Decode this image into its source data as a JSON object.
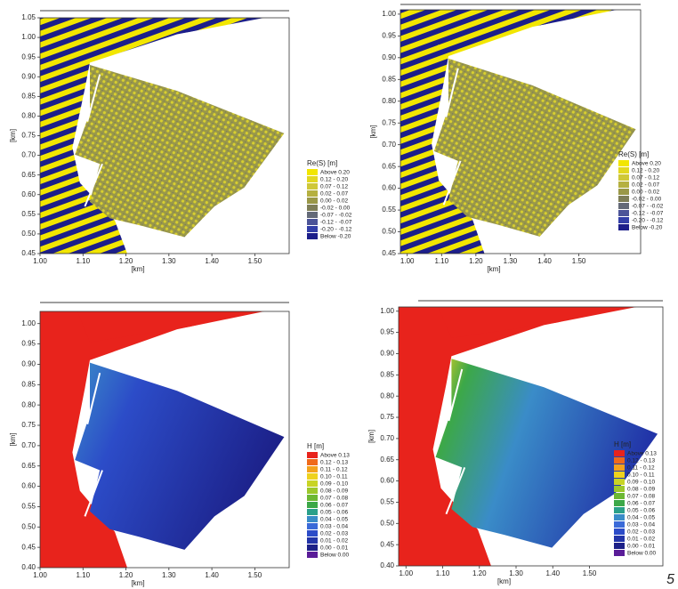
{
  "chart_data": [
    {
      "type": "contour",
      "xlabel": "[km]",
      "ylabel": "[km]",
      "xlim": [
        1.0,
        1.58
      ],
      "ylim": [
        0.45,
        1.05
      ],
      "xticks": [
        {
          "value": 1.0,
          "label": "1.00"
        },
        {
          "value": 1.1,
          "label": "1.10"
        },
        {
          "value": 1.2,
          "label": "1.20"
        },
        {
          "value": 1.3,
          "label": "1.30"
        },
        {
          "value": 1.4,
          "label": "1.40"
        },
        {
          "value": 1.5,
          "label": "1.50"
        }
      ],
      "yticks": [
        {
          "value": 0.45,
          "label": "0.45"
        },
        {
          "value": 0.5,
          "label": "0.50"
        },
        {
          "value": 0.55,
          "label": "0.55"
        },
        {
          "value": 0.6,
          "label": "0.60"
        },
        {
          "value": 0.65,
          "label": "0.65"
        },
        {
          "value": 0.7,
          "label": "0.70"
        },
        {
          "value": 0.75,
          "label": "0.75"
        },
        {
          "value": 0.8,
          "label": "0.80"
        },
        {
          "value": 0.85,
          "label": "0.85"
        },
        {
          "value": 0.9,
          "label": "0.90"
        },
        {
          "value": 0.95,
          "label": "0.95"
        },
        {
          "value": 1.0,
          "label": "1.00"
        },
        {
          "value": 1.05,
          "label": "1.05"
        }
      ],
      "legend": {
        "title": "Re(S) [m]",
        "items": [
          {
            "label": "Above 0.20",
            "color": "#f2e600"
          },
          {
            "label": "0.12 - 0.20",
            "color": "#e2d820"
          },
          {
            "label": "0.07 - 0.12",
            "color": "#cfc838"
          },
          {
            "label": "0.02 - 0.07",
            "color": "#b5b040"
          },
          {
            "label": "0.00 - 0.02",
            "color": "#9a9848"
          },
          {
            "label": "-0.02 - 0.00",
            "color": "#7e7e58"
          },
          {
            "label": "-0.07 - -0.02",
            "color": "#646a78"
          },
          {
            "label": "-0.12 - -0.07",
            "color": "#4c5498"
          },
          {
            "label": "-0.20 - -0.12",
            "color": "#333fa8"
          },
          {
            "label": "Below -0.20",
            "color": "#1c1e8a"
          }
        ]
      }
    },
    {
      "type": "contour",
      "xlabel": "[km]",
      "ylabel": "[km]",
      "xlim": [
        0.98,
        1.68
      ],
      "ylim": [
        0.45,
        1.01
      ],
      "xticks": [
        {
          "value": 1.0,
          "label": "1.00"
        },
        {
          "value": 1.1,
          "label": "1.10"
        },
        {
          "value": 1.2,
          "label": "1.20"
        },
        {
          "value": 1.3,
          "label": "1.30"
        },
        {
          "value": 1.4,
          "label": "1.40"
        },
        {
          "value": 1.5,
          "label": "1.50"
        }
      ],
      "yticks": [
        {
          "value": 0.45,
          "label": "0.45"
        },
        {
          "value": 0.5,
          "label": "0.50"
        },
        {
          "value": 0.55,
          "label": "0.55"
        },
        {
          "value": 0.6,
          "label": "0.60"
        },
        {
          "value": 0.65,
          "label": "0.65"
        },
        {
          "value": 0.7,
          "label": "0.70"
        },
        {
          "value": 0.75,
          "label": "0.75"
        },
        {
          "value": 0.8,
          "label": "0.80"
        },
        {
          "value": 0.85,
          "label": "0.85"
        },
        {
          "value": 0.9,
          "label": "0.90"
        },
        {
          "value": 0.95,
          "label": "0.95"
        },
        {
          "value": 1.0,
          "label": "1.00"
        }
      ],
      "legend": {
        "title": "Re(S) [m]",
        "items": [
          {
            "label": "Above 0.20",
            "color": "#f2e600"
          },
          {
            "label": "0.12 - 0.20",
            "color": "#e2d820"
          },
          {
            "label": "0.07 - 0.12",
            "color": "#cfc838"
          },
          {
            "label": "0.02 - 0.07",
            "color": "#b5b040"
          },
          {
            "label": "0.00 - 0.02",
            "color": "#9a9848"
          },
          {
            "label": "-0.02 - 0.00",
            "color": "#7e7e58"
          },
          {
            "label": "-0.07 - -0.02",
            "color": "#646a78"
          },
          {
            "label": "-0.12 - -0.07",
            "color": "#4c5498"
          },
          {
            "label": "-0.20 - -0.12",
            "color": "#333fa8"
          },
          {
            "label": "Below -0.20",
            "color": "#1c1e8a"
          }
        ]
      }
    },
    {
      "type": "contour",
      "xlabel": "[km]",
      "ylabel": "[km]",
      "xlim": [
        1.0,
        1.58
      ],
      "ylim": [
        0.4,
        1.03
      ],
      "xticks": [
        {
          "value": 1.0,
          "label": "1.00"
        },
        {
          "value": 1.1,
          "label": "1.10"
        },
        {
          "value": 1.2,
          "label": "1.20"
        },
        {
          "value": 1.3,
          "label": "1.30"
        },
        {
          "value": 1.4,
          "label": "1.40"
        },
        {
          "value": 1.5,
          "label": "1.50"
        }
      ],
      "yticks": [
        {
          "value": 0.4,
          "label": "0.40"
        },
        {
          "value": 0.45,
          "label": "0.45"
        },
        {
          "value": 0.5,
          "label": "0.50"
        },
        {
          "value": 0.55,
          "label": "0.55"
        },
        {
          "value": 0.6,
          "label": "0.60"
        },
        {
          "value": 0.65,
          "label": "0.65"
        },
        {
          "value": 0.7,
          "label": "0.70"
        },
        {
          "value": 0.75,
          "label": "0.75"
        },
        {
          "value": 0.8,
          "label": "0.80"
        },
        {
          "value": 0.85,
          "label": "0.85"
        },
        {
          "value": 0.9,
          "label": "0.90"
        },
        {
          "value": 0.95,
          "label": "0.95"
        },
        {
          "value": 1.0,
          "label": "1.00"
        }
      ],
      "legend": {
        "title": "H [m]",
        "items": [
          {
            "label": "Above 0.13",
            "color": "#e8231c"
          },
          {
            "label": "0.12 - 0.13",
            "color": "#f06a1a"
          },
          {
            "label": "0.11 - 0.12",
            "color": "#f4a21c"
          },
          {
            "label": "0.10 - 0.11",
            "color": "#eed21e"
          },
          {
            "label": "0.09 - 0.10",
            "color": "#c8d424"
          },
          {
            "label": "0.08 - 0.09",
            "color": "#9cc82c"
          },
          {
            "label": "0.07 - 0.08",
            "color": "#6cb834"
          },
          {
            "label": "0.06 - 0.07",
            "color": "#3ca848"
          },
          {
            "label": "0.05 - 0.06",
            "color": "#2aa08a"
          },
          {
            "label": "0.04 - 0.05",
            "color": "#3a8cc8"
          },
          {
            "label": "0.03 - 0.04",
            "color": "#3a6ad8"
          },
          {
            "label": "0.02 - 0.03",
            "color": "#2c4cc8"
          },
          {
            "label": "0.01 - 0.02",
            "color": "#2234a8"
          },
          {
            "label": "0.00 - 0.01",
            "color": "#1c2088"
          },
          {
            "label": "Below 0.00",
            "color": "#5a1c98"
          }
        ]
      }
    },
    {
      "type": "contour",
      "xlabel": "[km]",
      "ylabel": "[km]",
      "xlim": [
        0.98,
        1.7
      ],
      "ylim": [
        0.4,
        1.01
      ],
      "xticks": [
        {
          "value": 1.0,
          "label": "1.00"
        },
        {
          "value": 1.1,
          "label": "1.10"
        },
        {
          "value": 1.2,
          "label": "1.20"
        },
        {
          "value": 1.3,
          "label": "1.30"
        },
        {
          "value": 1.4,
          "label": "1.40"
        },
        {
          "value": 1.5,
          "label": "1.50"
        }
      ],
      "yticks": [
        {
          "value": 0.4,
          "label": "0.40"
        },
        {
          "value": 0.45,
          "label": "0.45"
        },
        {
          "value": 0.5,
          "label": "0.50"
        },
        {
          "value": 0.55,
          "label": "0.55"
        },
        {
          "value": 0.6,
          "label": "0.60"
        },
        {
          "value": 0.65,
          "label": "0.65"
        },
        {
          "value": 0.7,
          "label": "0.70"
        },
        {
          "value": 0.75,
          "label": "0.75"
        },
        {
          "value": 0.8,
          "label": "0.80"
        },
        {
          "value": 0.85,
          "label": "0.85"
        },
        {
          "value": 0.9,
          "label": "0.90"
        },
        {
          "value": 0.95,
          "label": "0.95"
        },
        {
          "value": 1.0,
          "label": "1.00"
        }
      ],
      "legend": {
        "title": "H [m]",
        "items": [
          {
            "label": "Above 0.13",
            "color": "#e8231c"
          },
          {
            "label": "0.12 - 0.13",
            "color": "#f06a1a"
          },
          {
            "label": "0.11 - 0.12",
            "color": "#f4a21c"
          },
          {
            "label": "0.10 - 0.11",
            "color": "#eed21e"
          },
          {
            "label": "0.09 - 0.10",
            "color": "#c8d424"
          },
          {
            "label": "0.08 - 0.09",
            "color": "#9cc82c"
          },
          {
            "label": "0.07 - 0.08",
            "color": "#6cb834"
          },
          {
            "label": "0.06 - 0.07",
            "color": "#3ca848"
          },
          {
            "label": "0.05 - 0.06",
            "color": "#2aa08a"
          },
          {
            "label": "0.04 - 0.05",
            "color": "#3a8cc8"
          },
          {
            "label": "0.03 - 0.04",
            "color": "#3a6ad8"
          },
          {
            "label": "0.02 - 0.03",
            "color": "#2c4cc8"
          },
          {
            "label": "0.01 - 0.02",
            "color": "#2234a8"
          },
          {
            "label": "0.00 - 0.01",
            "color": "#1c2088"
          },
          {
            "label": "Below 0.00",
            "color": "#5a1c98"
          }
        ]
      }
    }
  ],
  "page_number": "5"
}
